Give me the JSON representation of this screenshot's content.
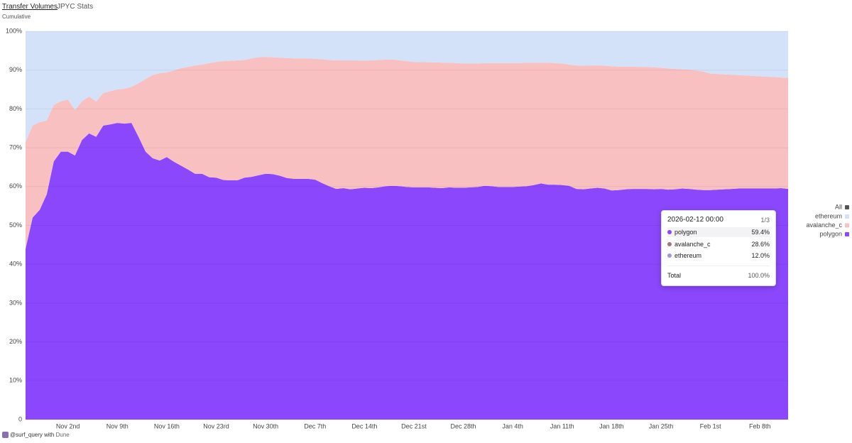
{
  "header": {
    "tabs": [
      "Transfer Volumes",
      "JPYC Stats"
    ],
    "subtitle": "Cumulative"
  },
  "chart_data": {
    "type": "stacked_area_percent",
    "categories": [
      null,
      null,
      null,
      null,
      null,
      null,
      "Nov 2nd",
      null,
      null,
      null,
      null,
      null,
      null,
      "Nov 9th",
      null,
      null,
      null,
      null,
      null,
      null,
      "Nov 16th",
      null,
      null,
      null,
      null,
      null,
      null,
      "Nov 23rd",
      null,
      null,
      null,
      null,
      null,
      null,
      "Nov 30th",
      null,
      null,
      null,
      null,
      null,
      null,
      "Dec 7th",
      null,
      null,
      null,
      null,
      null,
      null,
      "Dec 14th",
      null,
      null,
      null,
      null,
      null,
      null,
      "Dec 21st",
      null,
      null,
      null,
      null,
      null,
      null,
      "Dec 28th",
      null,
      null,
      null,
      null,
      null,
      null,
      "Jan 4th",
      null,
      null,
      null,
      null,
      null,
      null,
      "Jan 11th",
      null,
      null,
      null,
      null,
      null,
      null,
      "Jan 18th",
      null,
      null,
      null,
      null,
      null,
      null,
      "Jan 25th",
      null,
      null,
      null,
      null,
      null,
      null,
      "Feb 1st",
      null,
      null,
      null,
      null,
      null,
      null,
      "Feb 8th",
      null,
      null,
      null,
      null
    ],
    "series": [
      {
        "name": "polygon",
        "color": "#8a47fb",
        "values": [
          44,
          52,
          54,
          58,
          66.5,
          69,
          69,
          68,
          72,
          73.7,
          72.8,
          75.7,
          76,
          76.4,
          76.2,
          76.4,
          72.8,
          69,
          67.3,
          66.7,
          67.6,
          66.4,
          65.4,
          64.4,
          63.3,
          63.3,
          62.4,
          62.3,
          61.7,
          61.6,
          61.6,
          62.3,
          62.5,
          62.9,
          63.3,
          63.2,
          62.8,
          62.2,
          62,
          62,
          62,
          61.8,
          60.9,
          60.1,
          59.4,
          59.6,
          59.3,
          59.5,
          59.7,
          59.6,
          59.8,
          60.1,
          60.2,
          60.1,
          59.9,
          59.8,
          59.8,
          59.8,
          59.7,
          59.6,
          59.8,
          59.7,
          59.7,
          59.8,
          59.9,
          60.2,
          60.1,
          59.9,
          59.9,
          59.9,
          60,
          60.1,
          60.4,
          60.8,
          60.5,
          60.5,
          60.4,
          60.2,
          59.4,
          59.3,
          59.5,
          59.7,
          59.5,
          59,
          59.1,
          59.3,
          59.4,
          59.4,
          59.4,
          59.3,
          59.4,
          59.2,
          59.3,
          59.5,
          59.4,
          59.2,
          59.1,
          59.1,
          59.2,
          59.3,
          59.4,
          59.5,
          59.5,
          59.5,
          59.5,
          59.5,
          59.5,
          59.6,
          59.4
        ]
      },
      {
        "name": "avalanche_c",
        "color": "#f8c0c0",
        "values": [
          27.5,
          23.7,
          22.6,
          19,
          14.5,
          13,
          13.4,
          11.7,
          10,
          9.5,
          9.1,
          8.4,
          8.6,
          8.6,
          9,
          9.3,
          13.8,
          18.7,
          21.4,
          22.5,
          21.8,
          23.5,
          25.1,
          26.4,
          27.9,
          28.1,
          29.4,
          29.8,
          30.6,
          30.8,
          30.9,
          30.3,
          30.5,
          30.4,
          30.1,
          30.1,
          30.4,
          30.9,
          31,
          31,
          31,
          31.1,
          31.9,
          32.5,
          33.1,
          32.9,
          33.2,
          33,
          32.7,
          32.9,
          32.8,
          32.6,
          32.5,
          32.4,
          32.4,
          32.3,
          32.3,
          32.2,
          32.3,
          32.3,
          32.1,
          32.1,
          32,
          31.9,
          31.8,
          31.6,
          31.7,
          31.9,
          31.9,
          31.9,
          31.8,
          31.8,
          31.5,
          31.1,
          31.4,
          31.3,
          31.3,
          31.2,
          31.8,
          31.8,
          31.7,
          31.5,
          31.6,
          32,
          31.8,
          31.6,
          31.5,
          31.4,
          31.4,
          31.4,
          31.2,
          31.2,
          31,
          30.7,
          30.7,
          30.7,
          30.5,
          30,
          29.8,
          29.6,
          29.4,
          29.2,
          29.1,
          29,
          28.9,
          28.8,
          28.7,
          28.5,
          28.6
        ]
      },
      {
        "name": "ethereum",
        "color": "#d3e2f8",
        "values": [
          28.5,
          24.3,
          23.4,
          23,
          19,
          18,
          17.6,
          20.3,
          18,
          16.8,
          18.1,
          15.9,
          15.4,
          15,
          14.8,
          14.3,
          13.4,
          12.3,
          11.3,
          10.8,
          10.6,
          10.1,
          9.5,
          9.2,
          8.8,
          8.6,
          8.2,
          7.9,
          7.7,
          7.6,
          7.5,
          7.4,
          7,
          6.7,
          6.6,
          6.7,
          6.8,
          6.9,
          7,
          7,
          7,
          7.1,
          7.2,
          7.4,
          7.5,
          7.5,
          7.5,
          7.5,
          7.6,
          7.5,
          7.4,
          7.3,
          7.3,
          7.5,
          7.7,
          7.9,
          7.9,
          8,
          8,
          8.1,
          8.1,
          8.2,
          8.3,
          8.3,
          8.3,
          8.2,
          8.2,
          8.2,
          8.2,
          8.2,
          8.2,
          8.1,
          8.1,
          8.1,
          8.1,
          8.2,
          8.3,
          8.6,
          8.8,
          8.9,
          8.8,
          8.8,
          8.9,
          9,
          9.1,
          9.1,
          9.1,
          9.2,
          9.2,
          9.3,
          9.4,
          9.6,
          9.7,
          9.8,
          9.9,
          10.1,
          10.4,
          10.9,
          11,
          11.1,
          11.2,
          11.3,
          11.4,
          11.5,
          11.6,
          11.7,
          11.8,
          11.9,
          12.0
        ]
      }
    ],
    "ylim": [
      0,
      100
    ],
    "yticks": [
      0,
      {
        "value": 10,
        "label": "10%"
      },
      {
        "value": 20,
        "label": "20%"
      },
      {
        "value": 30,
        "label": "30%"
      },
      {
        "value": 40,
        "label": "40%"
      },
      {
        "value": 50,
        "label": "50%"
      },
      {
        "value": 60,
        "label": "60%"
      },
      {
        "value": 70,
        "label": "70%"
      },
      {
        "value": 80,
        "label": "80%"
      },
      {
        "value": 90,
        "label": "90%"
      },
      {
        "value": 100,
        "label": "100%"
      }
    ],
    "grid": true,
    "legend": {
      "all": "All",
      "all_color": "#555555",
      "position": "right"
    },
    "tooltip": {
      "title": "2026-02-12 00:00",
      "page": "1/3",
      "values": [
        "59.4%",
        "28.6%",
        "12.0%"
      ],
      "total": "Total",
      "total_value": "100.0%"
    }
  },
  "footer": {
    "user": "@surf_query with",
    "brand": "Dune"
  }
}
